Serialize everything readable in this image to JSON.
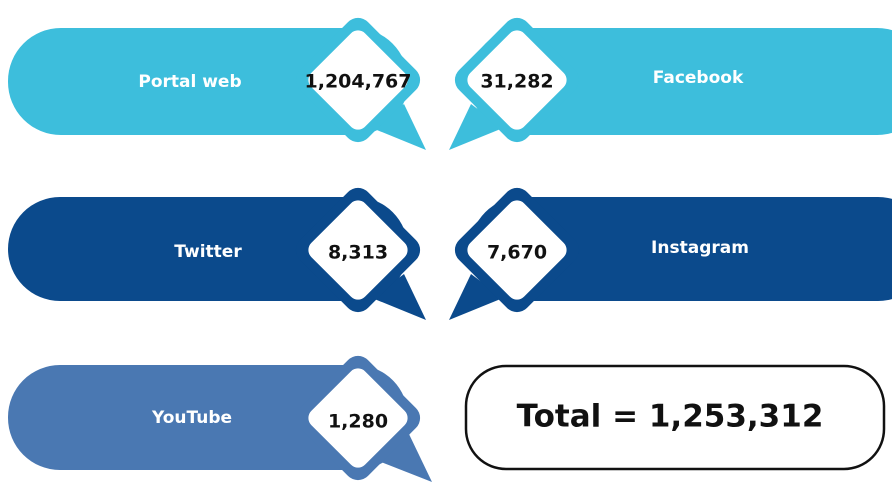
{
  "items": [
    {
      "label": "Portal web",
      "value": "1,204,767"
    },
    {
      "label": "Facebook",
      "value": "31,282"
    },
    {
      "label": "Twitter",
      "value": "8,313"
    },
    {
      "label": "Instagram",
      "value": "7,670"
    },
    {
      "label": "YouTube",
      "value": "1,280"
    }
  ],
  "total": "Total = 1,253,312"
}
